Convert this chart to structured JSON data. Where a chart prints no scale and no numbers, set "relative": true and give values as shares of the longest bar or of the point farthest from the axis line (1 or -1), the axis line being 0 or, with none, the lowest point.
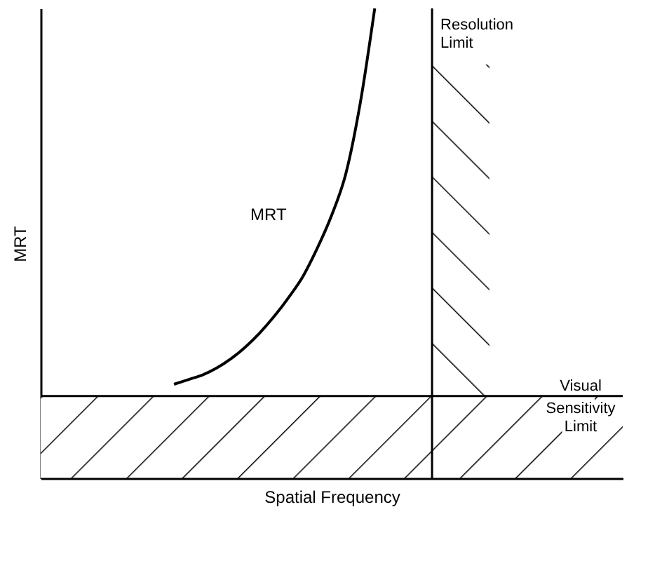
{
  "chart_data": {
    "type": "line",
    "relative": true,
    "xlabel": "Spatial Frequency",
    "ylabel": "MRT",
    "categories": [
      null,
      null,
      null,
      null,
      null,
      null,
      null,
      null,
      null,
      null,
      null,
      null,
      null,
      null,
      null,
      null,
      null,
      null,
      null,
      null,
      null,
      null,
      null,
      null,
      null,
      null,
      null,
      null,
      null,
      null,
      null,
      null,
      null,
      null,
      null,
      null,
      null,
      null,
      null,
      null,
      null
    ],
    "series": [
      {
        "color": "#000000",
        "values": [
          null,
          null,
          null,
          null,
          null,
          null,
          null,
          null,
          null,
          0.2,
          0.21,
          0.22,
          0.235,
          0.255,
          0.28,
          0.31,
          0.345,
          0.385,
          0.43,
          0.49,
          0.56,
          0.65,
          0.8,
          1.0,
          null,
          null,
          null,
          null,
          null,
          null,
          null,
          null,
          null,
          null,
          null,
          null,
          null,
          null,
          null,
          null,
          null
        ]
      }
    ],
    "ref_lines": [
      {
        "axis": "y",
        "value": 0.175,
        "label": "Visual Sensitivity Limit"
      }
    ],
    "bands": [
      {
        "axis": "y",
        "from": 0,
        "to": 0.175
      }
    ],
    "annotations": [
      "MRT",
      "Resolution Limit"
    ],
    "grid": false,
    "legend": false,
    "marker": "none",
    "line_style": "solid",
    "tick_labels": false
  }
}
